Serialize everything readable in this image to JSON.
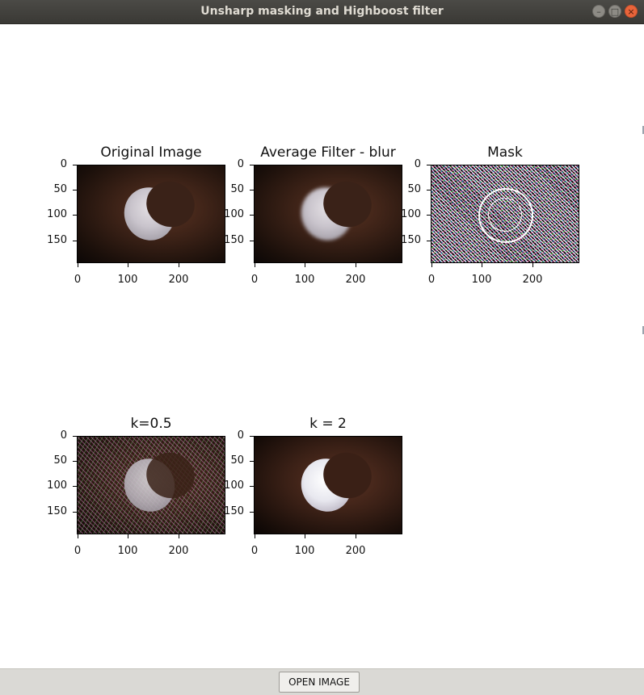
{
  "window": {
    "title": "Unsharp masking and Highboost filter"
  },
  "panels": [
    {
      "title": "Original Image",
      "yticks": [
        "0",
        "50",
        "100",
        "150"
      ],
      "xticks": [
        "0",
        "100",
        "200"
      ]
    },
    {
      "title": "Average Filter - blur",
      "yticks": [
        "0",
        "50",
        "100",
        "150"
      ],
      "xticks": [
        "0",
        "100",
        "200"
      ]
    },
    {
      "title": "Mask",
      "yticks": [
        "0",
        "50",
        "100",
        "150"
      ],
      "xticks": [
        "0",
        "100",
        "200"
      ]
    },
    {
      "title": "k=0.5",
      "yticks": [
        "0",
        "50",
        "100",
        "150"
      ],
      "xticks": [
        "0",
        "100",
        "200"
      ]
    },
    {
      "title": "k = 2",
      "yticks": [
        "0",
        "50",
        "100",
        "150"
      ],
      "xticks": [
        "0",
        "100",
        "200"
      ]
    }
  ],
  "footer": {
    "open_button": "OPEN IMAGE"
  }
}
